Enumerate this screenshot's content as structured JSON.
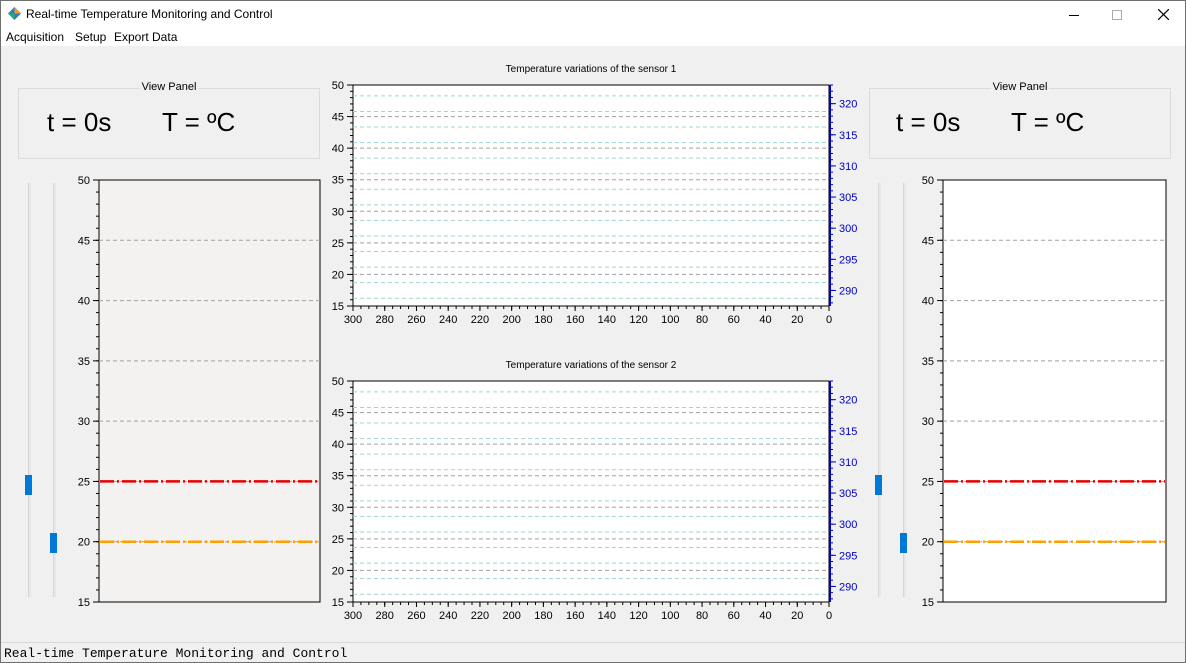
{
  "window": {
    "title": "Real-time Temperature Monitoring and Control"
  },
  "menu": [
    "Acquisition",
    "Setup",
    "Export Data"
  ],
  "view_panels": [
    {
      "title": "View Panel",
      "time": "t = 0s",
      "temp": "T = ºC"
    },
    {
      "title": "View Panel",
      "time": "t = 0s",
      "temp": "T = ºC"
    }
  ],
  "sliders": [
    {
      "level": 0.27
    },
    {
      "level": 0.13
    },
    {
      "level": 0.27
    },
    {
      "level": 0.13
    }
  ],
  "colors": {
    "setpoint": "#e60000",
    "reference": "#ffa000",
    "right_axis": "#0000c8",
    "grid": "#a0a0a0",
    "grid_minor": "#9fd4d4",
    "slider_thumb": "#0078d7"
  },
  "status": {
    "text": "Real-time Temperature Monitoring and Control"
  },
  "chart_data": [
    {
      "type": "line",
      "title": "Temperature variations of the sensor 1",
      "x_ticks": [
        "300",
        "280",
        "260",
        "240",
        "220",
        "200",
        "180",
        "160",
        "140",
        "120",
        "100",
        "80",
        "60",
        "40",
        "20",
        "0"
      ],
      "y_ticks": [
        "15",
        "20",
        "25",
        "30",
        "35",
        "40",
        "45",
        "50"
      ],
      "y2_ticks": [
        "290",
        "295",
        "300",
        "305",
        "310",
        "315",
        "320"
      ],
      "xlim": [
        300,
        0
      ],
      "ylim": [
        15,
        50
      ],
      "y2lim": [
        287.5,
        323
      ],
      "series": [],
      "grid": true
    },
    {
      "type": "line",
      "title": "Temperature variations of the sensor 2",
      "x_ticks": [
        "300",
        "280",
        "260",
        "240",
        "220",
        "200",
        "180",
        "160",
        "140",
        "120",
        "100",
        "80",
        "60",
        "40",
        "20",
        "0"
      ],
      "y_ticks": [
        "15",
        "20",
        "25",
        "30",
        "35",
        "40",
        "45",
        "50"
      ],
      "y2_ticks": [
        "290",
        "295",
        "300",
        "305",
        "310",
        "315",
        "320"
      ],
      "xlim": [
        300,
        0
      ],
      "ylim": [
        15,
        50
      ],
      "y2lim": [
        287.5,
        323
      ],
      "series": [],
      "grid": true
    },
    {
      "type": "line",
      "y_ticks": [
        "15",
        "20",
        "25",
        "30",
        "35",
        "40",
        "45",
        "50"
      ],
      "ylim": [
        15,
        50
      ],
      "series": [
        {
          "values": [
            25
          ]
        },
        {
          "values": [
            20
          ]
        }
      ],
      "grid": true
    },
    {
      "type": "line",
      "y_ticks": [
        "15",
        "20",
        "25",
        "30",
        "35",
        "40",
        "45",
        "50"
      ],
      "ylim": [
        15,
        50
      ],
      "series": [
        {
          "values": [
            25
          ]
        },
        {
          "values": [
            20
          ]
        }
      ],
      "grid": true
    }
  ]
}
